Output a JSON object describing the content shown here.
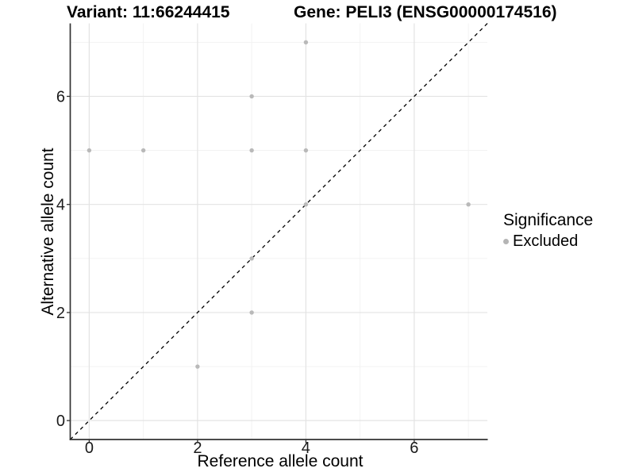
{
  "header": {
    "variant_title": "Variant: 11:66244415",
    "gene_title": "Gene: PELI3 (ENSG00000174516)"
  },
  "legend": {
    "title": "Significance",
    "items": [
      {
        "label": "Excluded",
        "color": "#b5b5b5"
      }
    ]
  },
  "chart_data": {
    "type": "scatter",
    "title_left": "Variant: 11:66244415",
    "title_right": "Gene: PELI3 (ENSG00000174516)",
    "xlabel": "Reference allele count",
    "ylabel": "Alternative allele count",
    "xlim": [
      -0.35,
      7.35
    ],
    "ylim": [
      -0.35,
      7.35
    ],
    "x_ticks": [
      0,
      2,
      4,
      6
    ],
    "y_ticks": [
      0,
      2,
      4,
      6
    ],
    "x_minor": [
      1,
      3,
      5,
      7
    ],
    "y_minor": [
      1,
      3,
      5,
      7
    ],
    "grid": true,
    "legend_position": "right-middle",
    "series": [
      {
        "name": "Excluded",
        "color": "#b9b9b9",
        "points": [
          [
            0,
            5
          ],
          [
            1,
            5
          ],
          [
            2,
            1
          ],
          [
            3,
            2
          ],
          [
            3,
            3
          ],
          [
            3,
            5
          ],
          [
            3,
            6
          ],
          [
            4,
            4
          ],
          [
            4,
            5
          ],
          [
            4,
            7
          ],
          [
            7,
            4
          ]
        ]
      }
    ],
    "identity_line": {
      "style": "dashed",
      "from": [
        -0.35,
        -0.35
      ],
      "to": [
        7.35,
        7.35
      ],
      "color": "#000000"
    }
  },
  "colors": {
    "grid_major": "#e3e3e3",
    "grid_minor": "#f1f1f1",
    "axis_line": "#333333",
    "tick_text": "#1a1a1a",
    "point": "#b9b9b9"
  }
}
